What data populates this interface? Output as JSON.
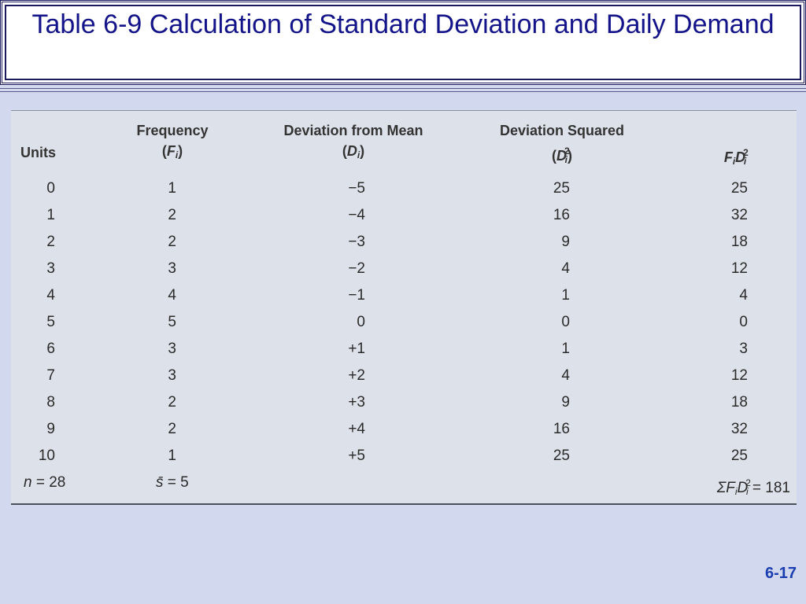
{
  "title": "Table 6-9 Calculation of Standard Deviation and Daily Demand",
  "slide_number": "6-17",
  "table": {
    "headers": {
      "units": "Units",
      "frequency": "Frequency",
      "frequency_sym": "F",
      "frequency_sub": "i",
      "deviation": "Deviation from Mean",
      "deviation_sym": "D",
      "deviation_sub": "i",
      "dev_squared": "Deviation Squared",
      "dev_squared_sym": "D",
      "dev_squared_sub": "i",
      "dev_squared_sup": "2",
      "fd2_f": "F",
      "fd2_f_sub": "i",
      "fd2_d": "D",
      "fd2_d_sub": "i",
      "fd2_sup": "2"
    },
    "rows": [
      {
        "units": "0",
        "freq": "1",
        "dev": "−5",
        "dev_sq": "25",
        "fd2": "25"
      },
      {
        "units": "1",
        "freq": "2",
        "dev": "−4",
        "dev_sq": "16",
        "fd2": "32"
      },
      {
        "units": "2",
        "freq": "2",
        "dev": "−3",
        "dev_sq": "9",
        "fd2": "18"
      },
      {
        "units": "3",
        "freq": "3",
        "dev": "−2",
        "dev_sq": "4",
        "fd2": "12"
      },
      {
        "units": "4",
        "freq": "4",
        "dev": "−1",
        "dev_sq": "1",
        "fd2": "4"
      },
      {
        "units": "5",
        "freq": "5",
        "dev": "0",
        "dev_sq": "0",
        "fd2": "0"
      },
      {
        "units": "6",
        "freq": "3",
        "dev": "+1",
        "dev_sq": "1",
        "fd2": "3"
      },
      {
        "units": "7",
        "freq": "3",
        "dev": "+2",
        "dev_sq": "4",
        "fd2": "12"
      },
      {
        "units": "8",
        "freq": "2",
        "dev": "+3",
        "dev_sq": "9",
        "fd2": "18"
      },
      {
        "units": "9",
        "freq": "2",
        "dev": "+4",
        "dev_sq": "16",
        "fd2": "32"
      },
      {
        "units": "10",
        "freq": "1",
        "dev": "+5",
        "dev_sq": "25",
        "fd2": "25"
      }
    ],
    "totals": {
      "n_label": "n",
      "n_value": "= 28",
      "s_label": "s̄",
      "s_value": "= 5",
      "sum_prefix": "ΣF",
      "sum_f_sub": "i",
      "sum_d": "D",
      "sum_d_sub": "i",
      "sum_sup": "2",
      "sum_value": "= 181"
    }
  }
}
